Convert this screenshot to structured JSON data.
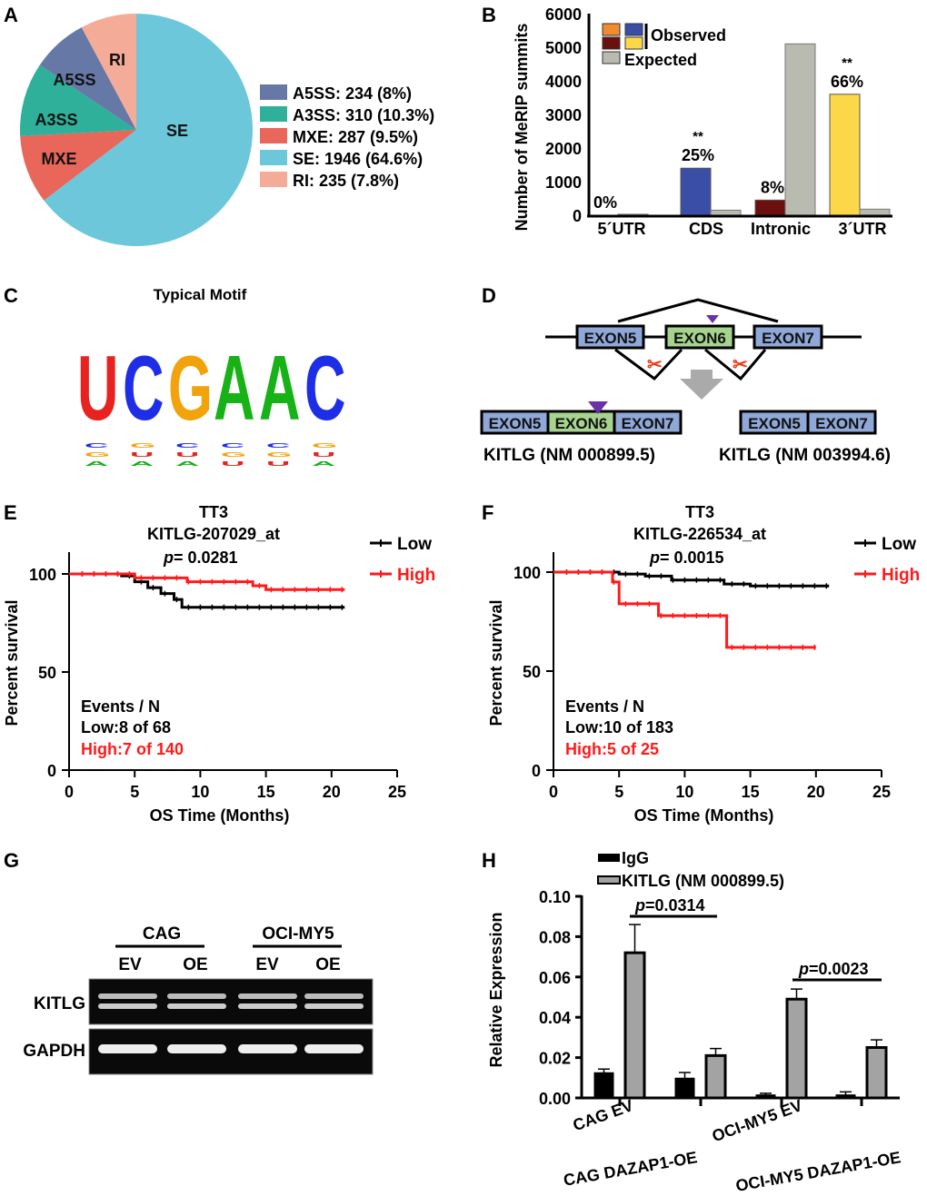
{
  "panels": {
    "A": "A",
    "B": "B",
    "C": "C",
    "D": "D",
    "E": "E",
    "F": "F",
    "G": "G",
    "H": "H"
  },
  "chart_data": [
    {
      "id": "A",
      "type": "pie",
      "title": "",
      "slices": [
        {
          "label": "SE",
          "count": 1946,
          "pct": "64.6%",
          "color": "#6cc7da",
          "legend": "SE: 1946 (64.6%)"
        },
        {
          "label": "MXE",
          "count": 287,
          "pct": "9.5%",
          "color": "#e8665a",
          "legend": "MXE: 287 (9.5%)"
        },
        {
          "label": "A3SS",
          "count": 310,
          "pct": "10.3%",
          "color": "#2fb09a",
          "legend": "A3SS: 310 (10.3%)"
        },
        {
          "label": "A5SS",
          "count": 234,
          "pct": "8%",
          "color": "#6678a6",
          "legend": "A5SS: 234 (8%)"
        },
        {
          "label": "RI",
          "count": 235,
          "pct": "7.8%",
          "color": "#f4ab97",
          "legend": "RI: 235 (7.8%)"
        }
      ],
      "legend_order": [
        "A5SS",
        "A3SS",
        "MXE",
        "SE",
        "RI"
      ]
    },
    {
      "id": "B",
      "type": "bar",
      "ylabel": "Number of MeRIP summits",
      "ylim": [
        0,
        6000
      ],
      "yticks": [
        0,
        1000,
        2000,
        3000,
        4000,
        5000,
        6000
      ],
      "categories": [
        "5´UTR",
        "CDS",
        "Intronic",
        "3´UTR"
      ],
      "observed": [
        0,
        1400,
        450,
        3600
      ],
      "expected": [
        30,
        150,
        5100,
        180
      ],
      "observed_colors": [
        "#f28a30",
        "#3a4ea8",
        "#6b0f0f",
        "#fcd848"
      ],
      "expected_color": "#b9bbb0",
      "labels": [
        "0%",
        "25%",
        "8%",
        "66%"
      ],
      "stars": [
        "",
        "**",
        "",
        "**"
      ],
      "legend": {
        "observed": "Observed",
        "expected": "Expected"
      }
    },
    {
      "id": "E",
      "type": "line",
      "title": [
        "TT3",
        "KITLG-207029_at"
      ],
      "p_label": "p",
      "p_value": "= 0.0281",
      "xlabel": "OS Time (Months)",
      "ylabel": "Percent survival",
      "xlim": [
        0,
        25
      ],
      "ylim": [
        0,
        100
      ],
      "xticks": [
        0,
        5,
        10,
        15,
        20,
        25
      ],
      "yticks": [
        0,
        50,
        100
      ],
      "series": [
        {
          "name": "Low",
          "color": "#000000",
          "x": [
            0,
            4,
            5,
            6,
            7,
            8,
            8.6,
            21
          ],
          "y": [
            100,
            99,
            96,
            93,
            90,
            87,
            83,
            83
          ]
        },
        {
          "name": "High",
          "color": "#ff1a1a",
          "x": [
            0,
            5,
            9,
            14,
            15,
            21
          ],
          "y": [
            100,
            98,
            96,
            94,
            92,
            92
          ]
        }
      ],
      "events_title": "Events / N",
      "events": [
        "Low:8 of 68",
        "High:7 of 140"
      ]
    },
    {
      "id": "F",
      "type": "line",
      "title": [
        "TT3",
        "KITLG-226534_at"
      ],
      "p_label": "p",
      "p_value": "= 0.0015",
      "xlabel": "OS Time (Months)",
      "ylabel": "Percent survival",
      "xlim": [
        0,
        25
      ],
      "ylim": [
        0,
        100
      ],
      "xticks": [
        0,
        5,
        10,
        15,
        20,
        25
      ],
      "yticks": [
        0,
        50,
        100
      ],
      "series": [
        {
          "name": "Low",
          "color": "#000000",
          "x": [
            0,
            5,
            7,
            9,
            13,
            15,
            21
          ],
          "y": [
            100,
            99,
            98,
            96,
            94,
            93,
            93
          ]
        },
        {
          "name": "High",
          "color": "#ff1a1a",
          "x": [
            0,
            4.5,
            5,
            8,
            13.2,
            20
          ],
          "y": [
            100,
            95,
            84,
            78,
            62,
            62
          ]
        }
      ],
      "events_title": "Events / N",
      "events": [
        "Low:10 of 183",
        "High:5 of 25"
      ]
    },
    {
      "id": "H",
      "type": "bar",
      "ylabel": "Relative Expression",
      "ylim": [
        0,
        0.1
      ],
      "yticks": [
        "0.00",
        "0.02",
        "0.04",
        "0.06",
        "0.08",
        "0.10"
      ],
      "categories": [
        "CAG EV",
        "CAG DAZAP1-OE",
        "OCI-MY5 EV",
        "OCI-MY5 DAZAP1-OE"
      ],
      "series": [
        {
          "name": "IgG",
          "color": "#000000",
          "values": [
            0.0125,
            0.0098,
            0.0015,
            0.0015
          ],
          "errors": [
            0.0018,
            0.0028,
            0.0008,
            0.0015
          ]
        },
        {
          "name": "KITLG  (NM 000899.5)",
          "color": "#a3a3a3",
          "values": [
            0.072,
            0.021,
            0.049,
            0.025
          ],
          "errors": [
            0.014,
            0.0035,
            0.005,
            0.0038
          ]
        }
      ],
      "annotations": [
        {
          "p_label": "p",
          "text": "=0.0314"
        },
        {
          "p_label": "p",
          "text": "=0.0023"
        }
      ]
    }
  ],
  "motif": {
    "title": "Typical Motif",
    "letters": [
      "U",
      "C",
      "G",
      "A",
      "A",
      "C"
    ]
  },
  "diagram": {
    "exons": [
      "EXON5",
      "EXON6",
      "EXON7"
    ],
    "iso1": "KITLG  (NM 000899.5)",
    "iso2": "KITLG  (NM 003994.6)"
  },
  "gel": {
    "groups": [
      "CAG",
      "OCI-MY5"
    ],
    "lanes": [
      "EV",
      "OE",
      "EV",
      "OE"
    ],
    "rows": [
      "KITLG",
      "GAPDH"
    ]
  }
}
